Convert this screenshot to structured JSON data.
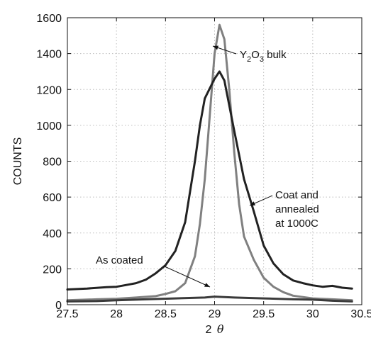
{
  "chart_data": {
    "type": "line",
    "title": "",
    "xlabel": "2 θ",
    "xlabel_plain": "2",
    "xlabel_symbol": "θ",
    "ylabel": "COUNTS",
    "xlim": [
      27.5,
      30.5
    ],
    "ylim": [
      0,
      1600
    ],
    "xticks": [
      "27.5",
      "28",
      "28.5",
      "29",
      "29.5",
      "30",
      "30.5"
    ],
    "xtick_values": [
      27.5,
      28,
      28.5,
      29,
      29.5,
      30,
      30.5
    ],
    "yticks": [
      "0",
      "200",
      "400",
      "600",
      "800",
      "1000",
      "1200",
      "1400",
      "1600"
    ],
    "ytick_values": [
      0,
      200,
      400,
      600,
      800,
      1000,
      1200,
      1400,
      1600
    ],
    "grid": true,
    "series": [
      {
        "color": "#808080",
        "x": [
          27.5,
          27.8,
          28.0,
          28.2,
          28.4,
          28.5,
          28.6,
          28.7,
          28.8,
          28.85,
          28.9,
          28.95,
          29.0,
          29.05,
          29.1,
          29.15,
          29.2,
          29.25,
          29.3,
          29.4,
          29.5,
          29.6,
          29.7,
          29.8,
          30.0,
          30.2,
          30.4
        ],
        "y": [
          25,
          30,
          33,
          40,
          48,
          60,
          75,
          120,
          270,
          450,
          700,
          1050,
          1400,
          1560,
          1480,
          1200,
          850,
          560,
          380,
          250,
          150,
          100,
          70,
          50,
          35,
          30,
          25
        ]
      },
      {
        "color": "#222222",
        "x": [
          27.5,
          27.7,
          27.9,
          28.0,
          28.1,
          28.2,
          28.3,
          28.4,
          28.5,
          28.6,
          28.7,
          28.8,
          28.85,
          28.9,
          29.0,
          29.05,
          29.1,
          29.2,
          29.3,
          29.35,
          29.4,
          29.5,
          29.6,
          29.7,
          29.8,
          29.9,
          30.0,
          30.1,
          30.2,
          30.3,
          30.4
        ],
        "y": [
          85,
          90,
          98,
          100,
          110,
          120,
          140,
          175,
          220,
          300,
          460,
          800,
          1000,
          1150,
          1260,
          1300,
          1250,
          970,
          700,
          610,
          520,
          330,
          230,
          170,
          135,
          120,
          108,
          100,
          105,
          95,
          90
        ]
      },
      {
        "color": "#3a3a3a",
        "x": [
          27.5,
          27.8,
          28.0,
          28.3,
          28.6,
          28.9,
          29.0,
          29.2,
          29.5,
          29.8,
          30.0,
          30.2,
          30.4
        ],
        "y": [
          18,
          20,
          25,
          30,
          35,
          40,
          45,
          40,
          35,
          30,
          28,
          22,
          18
        ]
      }
    ],
    "annotations": {
      "y2o3": {
        "base": "Y",
        "sub1": "2",
        "mid": "O",
        "sub2": "3",
        "rest": " bulk"
      },
      "coat": [
        "Coat and",
        "annealed",
        "at 1000C"
      ],
      "as_coated": "As coated"
    }
  }
}
